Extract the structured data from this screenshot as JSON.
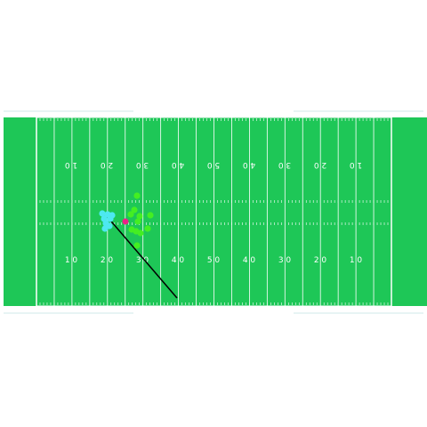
{
  "field": {
    "field_color": "#1ec757",
    "line_color": "#ffffff",
    "background_color": "#ffffff",
    "top_numbers": [
      "1 0",
      "2 0",
      "3 0",
      "4 0",
      "5 0",
      "4 0",
      "3 0",
      "2 0",
      "1 0"
    ],
    "bottom_numbers": [
      "1 0",
      "2 0",
      "3 0",
      "4 0",
      "5 0",
      "4 0",
      "3 0",
      "2 0",
      "1 0"
    ]
  },
  "players": {
    "offense_color": "#4de8f0",
    "defense_color": "#44ee22",
    "ball_color": "#ee2288",
    "offense_count": 8,
    "defense_count": 11
  },
  "route_line_color": "#000000"
}
